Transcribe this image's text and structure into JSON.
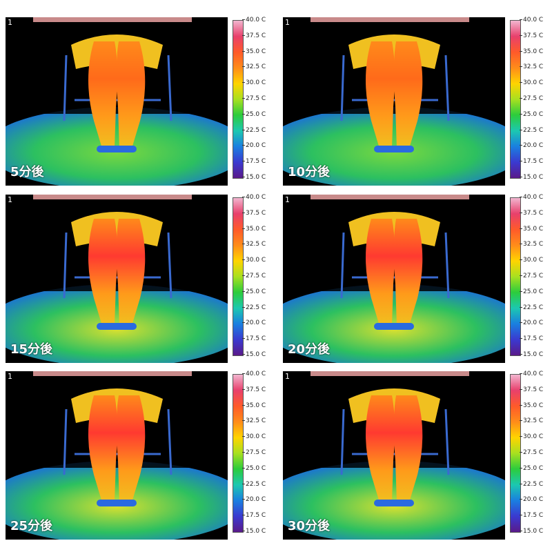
{
  "frame_number": "1",
  "scale_labels": [
    "40.0 C",
    "37.5 C",
    "35.0 C",
    "32.5 C",
    "30.0 C",
    "27.5 C",
    "25.0 C",
    "22.5 C",
    "20.0 C",
    "17.5 C",
    "15.0 C"
  ],
  "scale_colors": [
    "#f2b6d0",
    "#e8406c",
    "#ff5a2a",
    "#ff8c1a",
    "#ffd400",
    "#a8e020",
    "#2ccc3c",
    "#1cc8b0",
    "#1a7fe0",
    "#3a3ad0",
    "#5a1a8a"
  ],
  "panels": [
    {
      "label": "5分後"
    },
    {
      "label": "10分後"
    },
    {
      "label": "15分後"
    },
    {
      "label": "20分後"
    },
    {
      "label": "25分後"
    },
    {
      "label": "30分後"
    }
  ]
}
